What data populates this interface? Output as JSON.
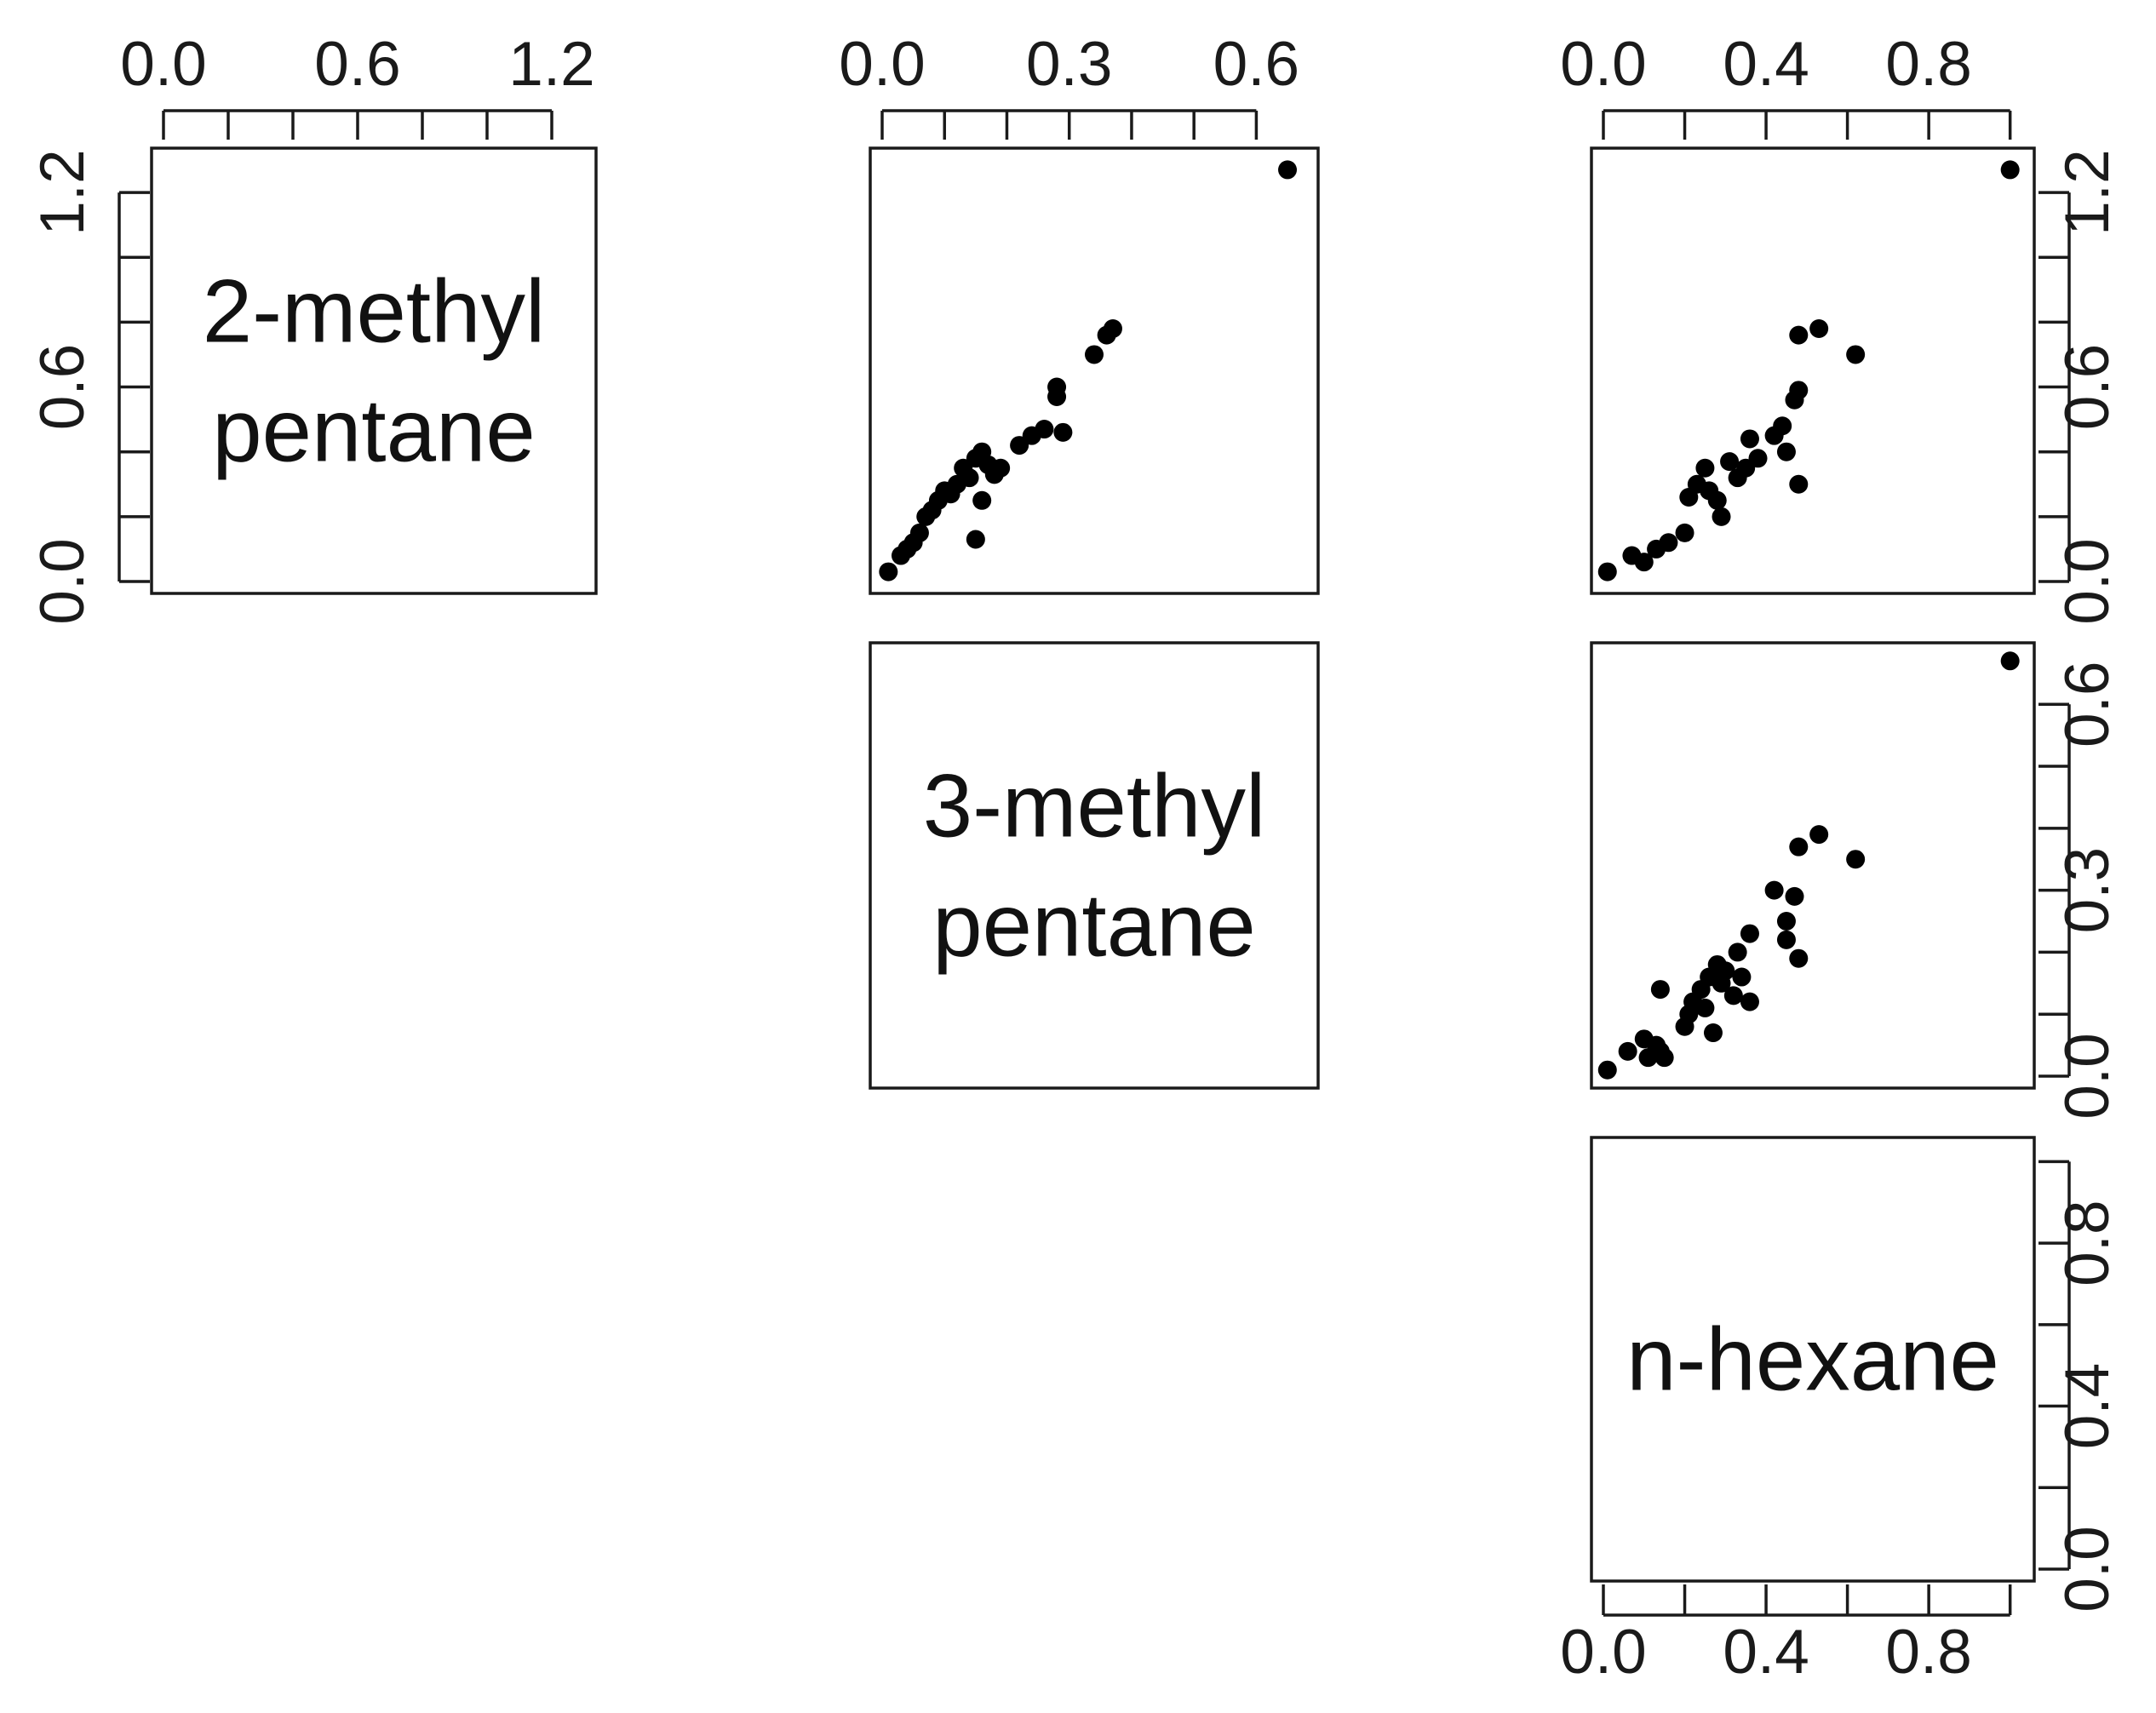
{
  "chart_data": {
    "type": "scatter",
    "variables": [
      "2-methyl pentane",
      "3-methyl pentane",
      "n-hexane"
    ],
    "diagonal_labels": [
      [
        "2-methyl",
        "pentane"
      ],
      [
        "3-methyl",
        "pentane"
      ],
      [
        "n-hexane"
      ]
    ],
    "axes": [
      {
        "range": [
          0,
          1.3
        ],
        "ticks": [
          0,
          0.2,
          0.4,
          0.6,
          0.8,
          1.0,
          1.2
        ],
        "tick_labels": [
          "0.0",
          "0.6",
          "1.2"
        ]
      },
      {
        "range": [
          0,
          0.68
        ],
        "ticks": [
          0,
          0.1,
          0.2,
          0.3,
          0.4,
          0.5,
          0.6
        ],
        "tick_labels": [
          "0.0",
          "0.3",
          "0.6"
        ]
      },
      {
        "range": [
          0,
          1.03
        ],
        "ticks": [
          0,
          0.2,
          0.4,
          0.6,
          0.8,
          1.0
        ],
        "tick_labels": [
          "0.0",
          "0.4",
          "0.8"
        ]
      }
    ],
    "panels": [
      {
        "row": 0,
        "col": 1,
        "xvar": "3-methyl pentane",
        "yvar": "2-methyl pentane",
        "points": [
          [
            0.01,
            0.03
          ],
          [
            0.03,
            0.08
          ],
          [
            0.04,
            0.1
          ],
          [
            0.05,
            0.12
          ],
          [
            0.06,
            0.15
          ],
          [
            0.07,
            0.2
          ],
          [
            0.08,
            0.22
          ],
          [
            0.09,
            0.25
          ],
          [
            0.1,
            0.28
          ],
          [
            0.11,
            0.27
          ],
          [
            0.12,
            0.3
          ],
          [
            0.13,
            0.35
          ],
          [
            0.14,
            0.32
          ],
          [
            0.15,
            0.38
          ],
          [
            0.16,
            0.4
          ],
          [
            0.17,
            0.36
          ],
          [
            0.18,
            0.33
          ],
          [
            0.15,
            0.13
          ],
          [
            0.16,
            0.25
          ],
          [
            0.19,
            0.35
          ],
          [
            0.22,
            0.42
          ],
          [
            0.24,
            0.45
          ],
          [
            0.26,
            0.47
          ],
          [
            0.28,
            0.57
          ],
          [
            0.28,
            0.6
          ],
          [
            0.29,
            0.46
          ],
          [
            0.34,
            0.7
          ],
          [
            0.36,
            0.76
          ],
          [
            0.37,
            0.78
          ],
          [
            0.65,
            1.27
          ]
        ]
      },
      {
        "row": 0,
        "col": 2,
        "xvar": "n-hexane",
        "yvar": "2-methyl pentane",
        "points": [
          [
            0.01,
            0.03
          ],
          [
            0.07,
            0.08
          ],
          [
            0.1,
            0.06
          ],
          [
            0.13,
            0.1
          ],
          [
            0.16,
            0.12
          ],
          [
            0.2,
            0.15
          ],
          [
            0.21,
            0.26
          ],
          [
            0.23,
            0.3
          ],
          [
            0.25,
            0.35
          ],
          [
            0.26,
            0.28
          ],
          [
            0.28,
            0.25
          ],
          [
            0.29,
            0.2
          ],
          [
            0.31,
            0.37
          ],
          [
            0.33,
            0.32
          ],
          [
            0.35,
            0.35
          ],
          [
            0.36,
            0.44
          ],
          [
            0.38,
            0.38
          ],
          [
            0.42,
            0.45
          ],
          [
            0.44,
            0.48
          ],
          [
            0.45,
            0.4
          ],
          [
            0.47,
            0.56
          ],
          [
            0.48,
            0.59
          ],
          [
            0.48,
            0.3
          ],
          [
            0.48,
            0.76
          ],
          [
            0.53,
            0.78
          ],
          [
            0.62,
            0.7
          ],
          [
            1.0,
            1.27
          ]
        ]
      },
      {
        "row": 1,
        "col": 2,
        "xvar": "n-hexane",
        "yvar": "3-methyl pentane",
        "points": [
          [
            0.01,
            0.01
          ],
          [
            0.06,
            0.04
          ],
          [
            0.1,
            0.06
          ],
          [
            0.11,
            0.03
          ],
          [
            0.13,
            0.05
          ],
          [
            0.14,
            0.04
          ],
          [
            0.15,
            0.03
          ],
          [
            0.14,
            0.14
          ],
          [
            0.2,
            0.08
          ],
          [
            0.21,
            0.1
          ],
          [
            0.22,
            0.12
          ],
          [
            0.24,
            0.14
          ],
          [
            0.25,
            0.11
          ],
          [
            0.26,
            0.16
          ],
          [
            0.27,
            0.07
          ],
          [
            0.28,
            0.18
          ],
          [
            0.29,
            0.15
          ],
          [
            0.3,
            0.17
          ],
          [
            0.32,
            0.13
          ],
          [
            0.33,
            0.2
          ],
          [
            0.34,
            0.16
          ],
          [
            0.36,
            0.12
          ],
          [
            0.36,
            0.23
          ],
          [
            0.42,
            0.3
          ],
          [
            0.45,
            0.25
          ],
          [
            0.45,
            0.22
          ],
          [
            0.47,
            0.29
          ],
          [
            0.48,
            0.19
          ],
          [
            0.48,
            0.37
          ],
          [
            0.53,
            0.39
          ],
          [
            0.62,
            0.35
          ],
          [
            1.0,
            0.67
          ]
        ]
      }
    ],
    "grid": false,
    "title": "",
    "xlabel": "",
    "ylabel": ""
  }
}
